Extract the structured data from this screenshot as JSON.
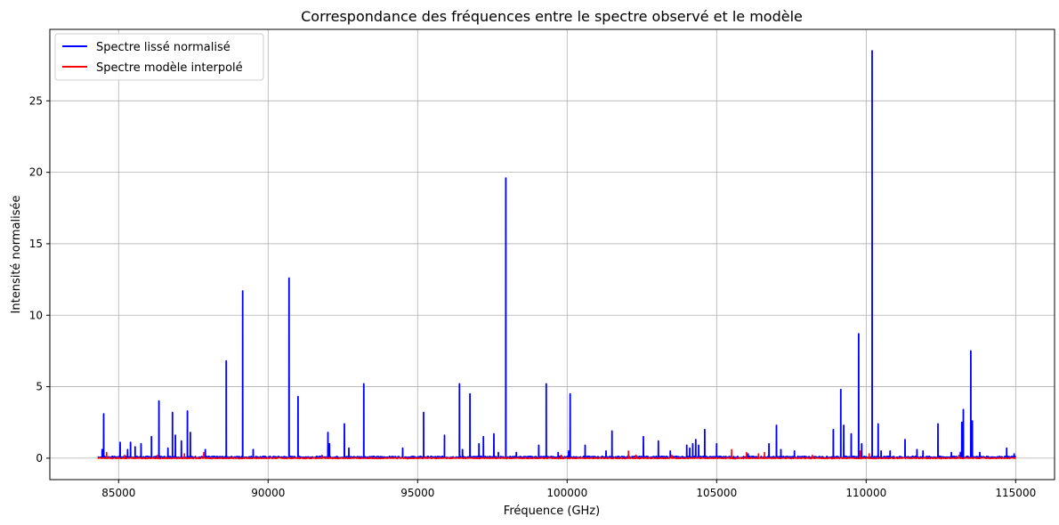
{
  "chart_data": {
    "type": "line",
    "title": "Correspondance des fréquences entre le spectre observé et le modèle",
    "xlabel": "Fréquence (GHz)",
    "ylabel": "Intensité normalisée",
    "xlim": [
      82700,
      116300
    ],
    "ylim": [
      -1.5,
      30
    ],
    "xticks": [
      85000,
      90000,
      95000,
      100000,
      105000,
      110000,
      115000
    ],
    "yticks": [
      0,
      5,
      10,
      15,
      20,
      25
    ],
    "grid": true,
    "legend_position": "top-left",
    "x_range": [
      84300,
      115000
    ],
    "series": [
      {
        "name": "Spectre lissé normalisé",
        "color": "#0000ff",
        "baseline": 0.05,
        "peaks": [
          [
            84450,
            0.6
          ],
          [
            84500,
            3.1
          ],
          [
            85050,
            1.1
          ],
          [
            85300,
            0.6
          ],
          [
            85400,
            1.1
          ],
          [
            85550,
            0.8
          ],
          [
            85750,
            1.0
          ],
          [
            86100,
            1.5
          ],
          [
            86350,
            4.0
          ],
          [
            86650,
            0.7
          ],
          [
            86800,
            3.2
          ],
          [
            86900,
            1.6
          ],
          [
            87100,
            1.2
          ],
          [
            87300,
            3.3
          ],
          [
            87400,
            1.8
          ],
          [
            87900,
            0.6
          ],
          [
            88600,
            6.8
          ],
          [
            89150,
            11.7
          ],
          [
            89500,
            0.6
          ],
          [
            90700,
            12.6
          ],
          [
            91000,
            4.3
          ],
          [
            92000,
            1.8
          ],
          [
            92050,
            1.0
          ],
          [
            92550,
            2.4
          ],
          [
            92700,
            0.7
          ],
          [
            93200,
            5.2
          ],
          [
            94500,
            0.7
          ],
          [
            95200,
            3.2
          ],
          [
            95900,
            1.6
          ],
          [
            96400,
            5.2
          ],
          [
            96500,
            0.6
          ],
          [
            96750,
            4.5
          ],
          [
            97050,
            1.0
          ],
          [
            97200,
            1.5
          ],
          [
            97550,
            1.7
          ],
          [
            97700,
            0.4
          ],
          [
            97950,
            19.6
          ],
          [
            98300,
            0.4
          ],
          [
            99050,
            0.9
          ],
          [
            99300,
            5.2
          ],
          [
            99700,
            0.4
          ],
          [
            100050,
            0.5
          ],
          [
            100100,
            4.5
          ],
          [
            100600,
            0.9
          ],
          [
            101500,
            1.9
          ],
          [
            101300,
            0.5
          ],
          [
            102550,
            1.5
          ],
          [
            103050,
            1.2
          ],
          [
            103450,
            0.5
          ],
          [
            104000,
            0.9
          ],
          [
            104100,
            0.7
          ],
          [
            104200,
            1.0
          ],
          [
            104300,
            1.3
          ],
          [
            104400,
            0.9
          ],
          [
            104600,
            2.0
          ],
          [
            105000,
            1.0
          ],
          [
            106050,
            0.3
          ],
          [
            106750,
            1.0
          ],
          [
            107000,
            2.3
          ],
          [
            107150,
            0.6
          ],
          [
            107600,
            0.5
          ],
          [
            108900,
            2.0
          ],
          [
            109150,
            4.8
          ],
          [
            109250,
            2.3
          ],
          [
            109500,
            1.7
          ],
          [
            109750,
            8.7
          ],
          [
            109850,
            1.0
          ],
          [
            110200,
            28.5
          ],
          [
            110400,
            2.4
          ],
          [
            110500,
            0.5
          ],
          [
            110800,
            0.5
          ],
          [
            111300,
            1.3
          ],
          [
            111700,
            0.6
          ],
          [
            111900,
            0.5
          ],
          [
            112400,
            2.4
          ],
          [
            112850,
            0.4
          ],
          [
            113150,
            0.4
          ],
          [
            113250,
            3.4
          ],
          [
            113200,
            2.5
          ],
          [
            113500,
            7.5
          ],
          [
            113550,
            2.6
          ],
          [
            113800,
            0.4
          ],
          [
            114700,
            0.7
          ],
          [
            114950,
            0.3
          ]
        ]
      },
      {
        "name": "Spectre modèle interpolé",
        "color": "#ff0000",
        "baseline": 0.0,
        "peaks": [
          [
            84600,
            0.4
          ],
          [
            85200,
            0.2
          ],
          [
            86300,
            0.2
          ],
          [
            87200,
            0.3
          ],
          [
            87850,
            0.4
          ],
          [
            91800,
            0.2
          ],
          [
            95300,
            0.1
          ],
          [
            99800,
            0.2
          ],
          [
            102050,
            0.5
          ],
          [
            102300,
            0.2
          ],
          [
            103500,
            0.2
          ],
          [
            105500,
            0.6
          ],
          [
            106000,
            0.4
          ],
          [
            106400,
            0.3
          ],
          [
            106600,
            0.4
          ],
          [
            108200,
            0.2
          ],
          [
            109800,
            0.5
          ],
          [
            110100,
            0.3
          ],
          [
            113100,
            0.2
          ]
        ]
      }
    ]
  }
}
